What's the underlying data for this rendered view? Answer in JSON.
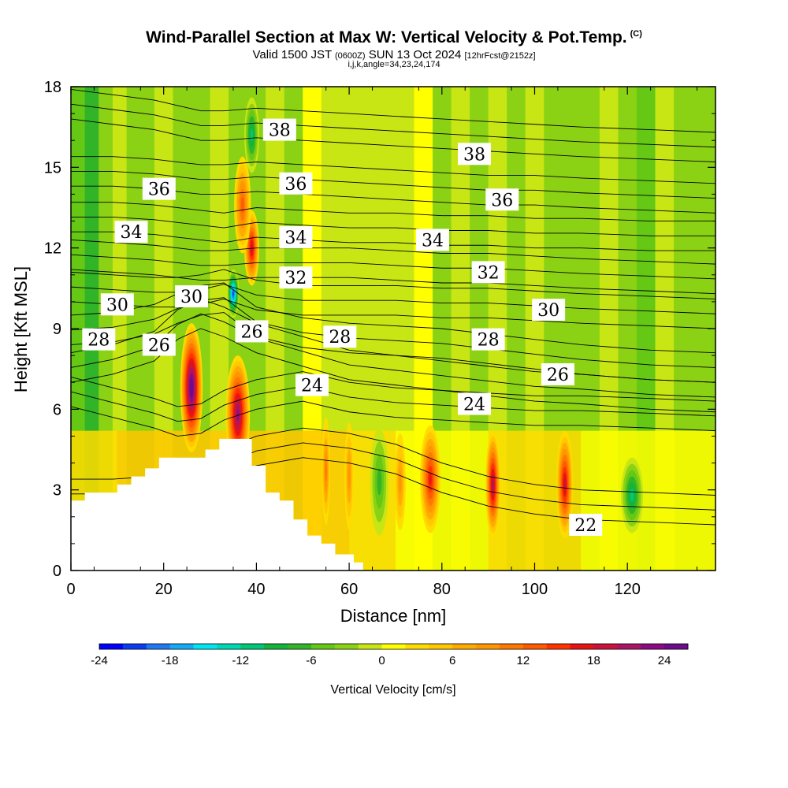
{
  "chart_data": {
    "type": "heatmap",
    "title": "Wind-Parallel Section at Max W: Vertical Velocity & Pot.Temp.",
    "title_suffix": "(C)",
    "subtitle": {
      "a": "Valid 1500 JST",
      "b": "(0600Z)",
      "c": "SUN 13 Oct 2024",
      "d": "[12hrFcst@2152z]"
    },
    "subtitle2": "i,j,k,angle=34,23,24,174",
    "xlabel": "Distance [nm]",
    "ylabel": "Height [Kft MSL]",
    "xlim": [
      0,
      139
    ],
    "ylim": [
      0,
      18
    ],
    "x_ticks": [
      "0",
      "20",
      "40",
      "60",
      "80",
      "100",
      "120"
    ],
    "y_ticks": [
      "0",
      "3",
      "6",
      "9",
      "12",
      "15",
      "18"
    ],
    "colorbar": {
      "label": "Vertical Velocity [cm/s]",
      "ticks": [
        "-24",
        "-18",
        "-12",
        "-6",
        "0",
        "6",
        "12",
        "18",
        "24"
      ],
      "colors": [
        "#0000ff",
        "#0a3cf2",
        "#1e78f0",
        "#14aaf5",
        "#00e6f0",
        "#00d8b4",
        "#00c878",
        "#14b43c",
        "#32b428",
        "#64c814",
        "#8cd214",
        "#c8e614",
        "#ffff00",
        "#ffdc00",
        "#ffc800",
        "#ffaa00",
        "#ff9600",
        "#ff7800",
        "#ff5a00",
        "#ff3200",
        "#e61414",
        "#c8143c",
        "#aa1464",
        "#8c0a82",
        "#6e0a8c"
      ]
    },
    "terrain": [
      [
        0,
        2.6
      ],
      [
        3,
        2.6
      ],
      [
        3,
        2.9
      ],
      [
        10,
        2.9
      ],
      [
        10,
        3.2
      ],
      [
        13,
        3.2
      ],
      [
        13,
        3.5
      ],
      [
        16,
        3.5
      ],
      [
        16,
        3.8
      ],
      [
        19,
        3.8
      ],
      [
        19,
        4.2
      ],
      [
        29,
        4.2
      ],
      [
        29,
        4.5
      ],
      [
        32,
        4.5
      ],
      [
        32,
        4.9
      ],
      [
        39,
        4.9
      ],
      [
        39,
        3.9
      ],
      [
        42,
        3.9
      ],
      [
        42,
        2.9
      ],
      [
        45,
        2.9
      ],
      [
        45,
        2.6
      ],
      [
        48,
        2.6
      ],
      [
        48,
        1.9
      ],
      [
        51,
        1.9
      ],
      [
        51,
        1.3
      ],
      [
        54,
        1.3
      ],
      [
        54,
        1.0
      ],
      [
        57,
        1.0
      ],
      [
        57,
        0.6
      ],
      [
        61,
        0.6
      ],
      [
        61,
        0.3
      ],
      [
        63,
        0.3
      ],
      [
        63,
        0
      ]
    ],
    "cells": [
      {
        "x": 26,
        "z": 6.8,
        "rx": 2.4,
        "rz": 2.4,
        "w": 26
      },
      {
        "x": 36,
        "z": 5.8,
        "rx": 2.6,
        "rz": 2.2,
        "w": 22
      },
      {
        "x": 39,
        "z": 12.0,
        "rx": 1.6,
        "rz": 1.4,
        "w": 18
      },
      {
        "x": 37,
        "z": 13.6,
        "rx": 1.8,
        "rz": 1.8,
        "w": 12
      },
      {
        "x": 35,
        "z": 10.3,
        "rx": 1.3,
        "rz": 0.9,
        "w": -22
      },
      {
        "x": 39,
        "z": 16.2,
        "rx": 1.6,
        "rz": 1.4,
        "w": -12
      },
      {
        "x": 77.5,
        "z": 3.4,
        "rx": 2.2,
        "rz": 2.0,
        "w": 16
      },
      {
        "x": 91,
        "z": 3.2,
        "rx": 1.6,
        "rz": 2.0,
        "w": 20
      },
      {
        "x": 106.5,
        "z": 3.2,
        "rx": 1.8,
        "rz": 2.0,
        "w": 19
      },
      {
        "x": 66.5,
        "z": 3.3,
        "rx": 2.0,
        "rz": 2.0,
        "w": -9
      },
      {
        "x": 121,
        "z": 2.8,
        "rx": 2.4,
        "rz": 1.4,
        "w": -13
      },
      {
        "x": 71,
        "z": 3.3,
        "rx": 1.2,
        "rz": 1.8,
        "w": 9
      },
      {
        "x": 60,
        "z": 3.5,
        "rx": 1.0,
        "rz": 2.0,
        "w": 8
      },
      {
        "x": 55,
        "z": 3.7,
        "rx": 0.9,
        "rz": 2.0,
        "w": 10
      }
    ],
    "isentropes": [
      {
        "theta": 22,
        "z": [
          2.3,
          2.3,
          2.4,
          2.6,
          2.9,
          3.4,
          3.9,
          4.2,
          4.0,
          3.6,
          2.9,
          2.4,
          2.1,
          1.9,
          1.8,
          1.7
        ]
      },
      {
        "theta": 24,
        "z": [
          6.1,
          5.7,
          5.3,
          5.0,
          5.1,
          5.6,
          6.0,
          6.3,
          5.9,
          5.7,
          5.6,
          5.5,
          5.4,
          5.4,
          5.3,
          5.2
        ]
      },
      {
        "theta": 26,
        "z": [
          7.0,
          7.3,
          7.8,
          8.6,
          9.0,
          8.7,
          8.1,
          7.6,
          7.1,
          6.9,
          6.7,
          6.5,
          6.3,
          6.2,
          6.0,
          5.9
        ]
      },
      {
        "theta": 28,
        "z": [
          8.4,
          8.5,
          8.8,
          9.2,
          9.5,
          9.6,
          8.7,
          8.3,
          8.1,
          8.0,
          7.9,
          7.7,
          7.5,
          7.3,
          7.1,
          7.0
        ]
      },
      {
        "theta": 30,
        "z": [
          10.0,
          9.9,
          9.8,
          9.8,
          9.9,
          10.1,
          9.7,
          9.5,
          9.5,
          9.5,
          9.4,
          9.4,
          9.3,
          9.2,
          9.1,
          9.0
        ]
      },
      {
        "theta": 32,
        "z": [
          11.2,
          11.1,
          11.0,
          10.9,
          10.8,
          10.8,
          10.9,
          10.9,
          10.9,
          10.8,
          10.7,
          10.7,
          10.6,
          10.5,
          10.4,
          10.3
        ]
      },
      {
        "theta": 34,
        "z": [
          12.6,
          12.6,
          12.5,
          12.4,
          12.3,
          12.2,
          12.4,
          12.3,
          12.2,
          12.2,
          12.1,
          12.1,
          12.0,
          12.0,
          11.9,
          11.9
        ]
      },
      {
        "theta": 36,
        "z": [
          14.3,
          14.3,
          14.2,
          14.1,
          14.0,
          14.0,
          14.1,
          14.0,
          13.9,
          13.8,
          13.7,
          13.6,
          13.6,
          13.5,
          13.4,
          13.3
        ]
      },
      {
        "theta": 38,
        "z": [
          16.8,
          16.6,
          16.4,
          16.2,
          16.0,
          16.0,
          16.1,
          16.0,
          15.9,
          15.8,
          15.7,
          15.6,
          15.5,
          15.4,
          15.3,
          15.2
        ]
      }
    ],
    "isentrope_x": [
      0,
      9,
      18,
      23,
      28,
      33,
      40,
      50,
      60,
      70,
      80,
      90,
      100,
      110,
      125,
      139
    ],
    "contour_labels": [
      {
        "text": "38",
        "x": 45,
        "z": 16.4
      },
      {
        "text": "38",
        "x": 87,
        "z": 15.5
      },
      {
        "text": "36",
        "x": 19,
        "z": 14.2
      },
      {
        "text": "36",
        "x": 48.5,
        "z": 14.4
      },
      {
        "text": "36",
        "x": 93,
        "z": 13.8
      },
      {
        "text": "34",
        "x": 13,
        "z": 12.6
      },
      {
        "text": "34",
        "x": 48.5,
        "z": 12.4
      },
      {
        "text": "34",
        "x": 78,
        "z": 12.3
      },
      {
        "text": "32",
        "x": 48.5,
        "z": 10.9
      },
      {
        "text": "32",
        "x": 90,
        "z": 11.1
      },
      {
        "text": "30",
        "x": 10,
        "z": 9.9
      },
      {
        "text": "30",
        "x": 26,
        "z": 10.2
      },
      {
        "text": "30",
        "x": 103,
        "z": 9.7
      },
      {
        "text": "28",
        "x": 6,
        "z": 8.6
      },
      {
        "text": "28",
        "x": 58,
        "z": 8.7
      },
      {
        "text": "28",
        "x": 90,
        "z": 8.6
      },
      {
        "text": "26",
        "x": 19,
        "z": 8.4
      },
      {
        "text": "26",
        "x": 39,
        "z": 8.9
      },
      {
        "text": "26",
        "x": 105,
        "z": 7.3
      },
      {
        "text": "24",
        "x": 52,
        "z": 6.9
      },
      {
        "text": "24",
        "x": 87,
        "z": 6.2
      },
      {
        "text": "22",
        "x": 111,
        "z": 1.7
      }
    ]
  }
}
